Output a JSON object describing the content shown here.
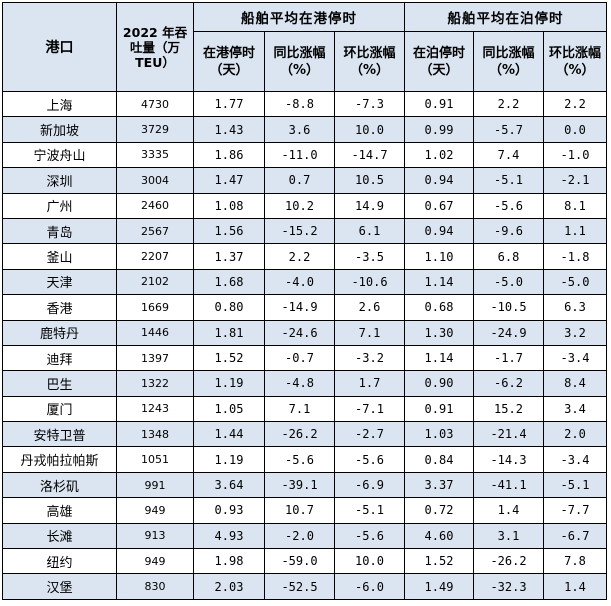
{
  "table": {
    "header": {
      "port": "港口",
      "throughput": "2022 年吞吐量（万 TEU）",
      "group_port": "船舶平均在港停时",
      "group_anchor": "船舶平均在泊停时",
      "in_port_time": "在港停时（天）",
      "anchor_time": "在泊停时（天）",
      "yoy": "同比涨幅（%）",
      "mom": "环比涨幅（%）"
    },
    "rows": [
      {
        "port": "上海",
        "throughput": "4730",
        "port_time": "1.77",
        "port_yoy": "-8.8",
        "port_mom": "-7.3",
        "berth_time": "0.91",
        "berth_yoy": "2.2",
        "berth_mom": "2.2"
      },
      {
        "port": "新加坡",
        "throughput": "3729",
        "port_time": "1.43",
        "port_yoy": "3.6",
        "port_mom": "10.0",
        "berth_time": "0.99",
        "berth_yoy": "-5.7",
        "berth_mom": "0.0"
      },
      {
        "port": "宁波舟山",
        "throughput": "3335",
        "port_time": "1.86",
        "port_yoy": "-11.0",
        "port_mom": "-14.7",
        "berth_time": "1.02",
        "berth_yoy": "7.4",
        "berth_mom": "-1.0"
      },
      {
        "port": "深圳",
        "throughput": "3004",
        "port_time": "1.47",
        "port_yoy": "0.7",
        "port_mom": "10.5",
        "berth_time": "0.94",
        "berth_yoy": "-5.1",
        "berth_mom": "-2.1"
      },
      {
        "port": "广州",
        "throughput": "2460",
        "port_time": "1.08",
        "port_yoy": "10.2",
        "port_mom": "14.9",
        "berth_time": "0.67",
        "berth_yoy": "-5.6",
        "berth_mom": "8.1"
      },
      {
        "port": "青岛",
        "throughput": "2567",
        "port_time": "1.56",
        "port_yoy": "-15.2",
        "port_mom": "6.1",
        "berth_time": "0.94",
        "berth_yoy": "-9.6",
        "berth_mom": "1.1"
      },
      {
        "port": "釜山",
        "throughput": "2207",
        "port_time": "1.37",
        "port_yoy": "2.2",
        "port_mom": "-3.5",
        "berth_time": "1.10",
        "berth_yoy": "6.8",
        "berth_mom": "-1.8"
      },
      {
        "port": "天津",
        "throughput": "2102",
        "port_time": "1.68",
        "port_yoy": "-4.0",
        "port_mom": "-10.6",
        "berth_time": "1.14",
        "berth_yoy": "-5.0",
        "berth_mom": "-5.0"
      },
      {
        "port": "香港",
        "throughput": "1669",
        "port_time": "0.80",
        "port_yoy": "-14.9",
        "port_mom": "2.6",
        "berth_time": "0.68",
        "berth_yoy": "-10.5",
        "berth_mom": "6.3"
      },
      {
        "port": "鹿特丹",
        "throughput": "1446",
        "port_time": "1.81",
        "port_yoy": "-24.6",
        "port_mom": "7.1",
        "berth_time": "1.30",
        "berth_yoy": "-24.9",
        "berth_mom": "3.2"
      },
      {
        "port": "迪拜",
        "throughput": "1397",
        "port_time": "1.52",
        "port_yoy": "-0.7",
        "port_mom": "-3.2",
        "berth_time": "1.14",
        "berth_yoy": "-1.7",
        "berth_mom": "-3.4"
      },
      {
        "port": "巴生",
        "throughput": "1322",
        "port_time": "1.19",
        "port_yoy": "-4.8",
        "port_mom": "1.7",
        "berth_time": "0.90",
        "berth_yoy": "-6.2",
        "berth_mom": "8.4"
      },
      {
        "port": "厦门",
        "throughput": "1243",
        "port_time": "1.05",
        "port_yoy": "7.1",
        "port_mom": "-7.1",
        "berth_time": "0.91",
        "berth_yoy": "15.2",
        "berth_mom": "3.4"
      },
      {
        "port": "安特卫普",
        "throughput": "1348",
        "port_time": "1.44",
        "port_yoy": "-26.2",
        "port_mom": "-2.7",
        "berth_time": "1.03",
        "berth_yoy": "-21.4",
        "berth_mom": "2.0"
      },
      {
        "port": "丹戎帕拉帕斯",
        "throughput": "1051",
        "port_time": "1.19",
        "port_yoy": "-5.6",
        "port_mom": "-5.6",
        "berth_time": "0.84",
        "berth_yoy": "-14.3",
        "berth_mom": "-3.4"
      },
      {
        "port": "洛杉矶",
        "throughput": "991",
        "port_time": "3.64",
        "port_yoy": "-39.1",
        "port_mom": "-6.9",
        "berth_time": "3.37",
        "berth_yoy": "-41.1",
        "berth_mom": "-5.1"
      },
      {
        "port": "高雄",
        "throughput": "949",
        "port_time": "0.93",
        "port_yoy": "10.7",
        "port_mom": "-5.1",
        "berth_time": "0.72",
        "berth_yoy": "1.4",
        "berth_mom": "-7.7"
      },
      {
        "port": "长滩",
        "throughput": "913",
        "port_time": "4.93",
        "port_yoy": "-2.0",
        "port_mom": "-5.6",
        "berth_time": "4.60",
        "berth_yoy": "3.1",
        "berth_mom": "-6.7"
      },
      {
        "port": "纽约",
        "throughput": "949",
        "port_time": "1.98",
        "port_yoy": "-59.0",
        "port_mom": "10.0",
        "berth_time": "1.52",
        "berth_yoy": "-26.2",
        "berth_mom": "7.8"
      },
      {
        "port": "汉堡",
        "throughput": "830",
        "port_time": "2.03",
        "port_yoy": "-52.5",
        "port_mom": "-6.0",
        "berth_time": "1.49",
        "berth_yoy": "-32.3",
        "berth_mom": "1.4"
      }
    ]
  }
}
